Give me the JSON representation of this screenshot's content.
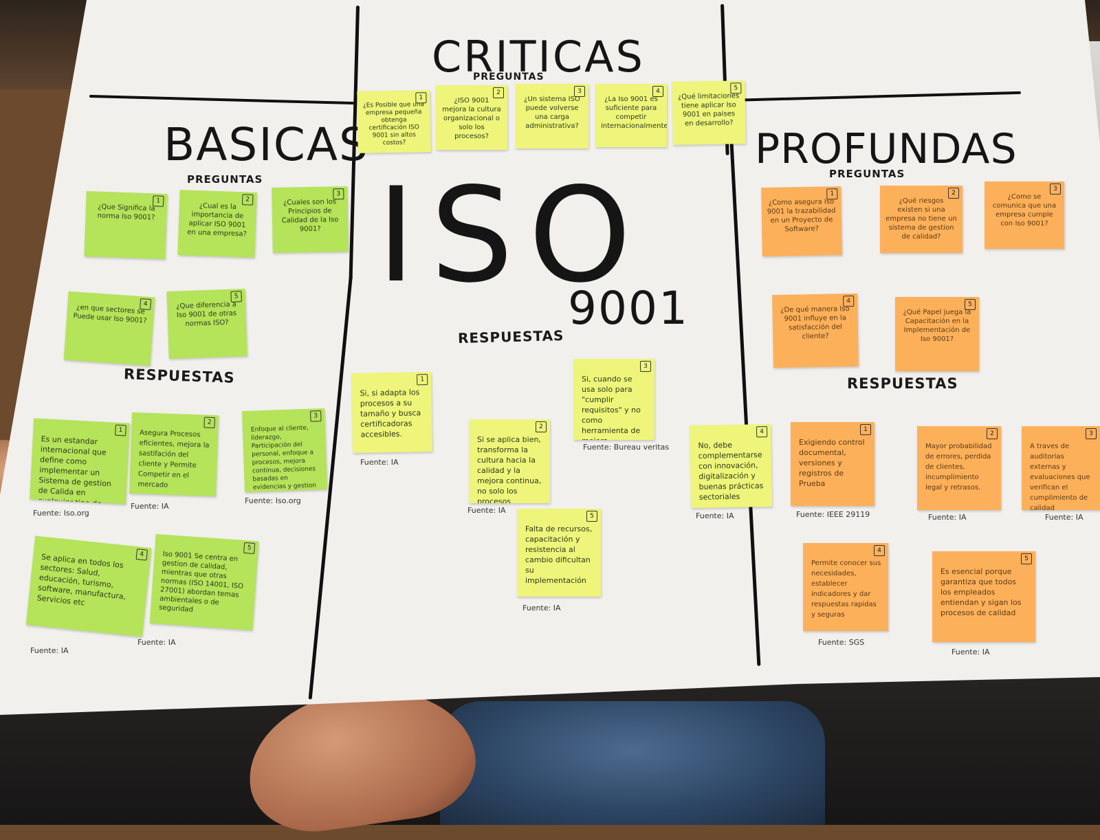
{
  "center": {
    "title": "CRITICAS",
    "subtitle": "PREGUNTAS",
    "big_iso": "ISO",
    "big_num": "9001",
    "answers_label": "RESPUESTAS"
  },
  "left": {
    "title": "BASICAS",
    "subtitle": "PREGUNTAS",
    "answers_label": "RESPUESTAS"
  },
  "right": {
    "title": "PROFUNDAS",
    "subtitle": "PREGUNTAS",
    "answers_label": "RESPUESTAS"
  },
  "notes": [
    {
      "id": "b-q1",
      "num": "1",
      "text": "¿Que Significa la norma Iso 9001?"
    },
    {
      "id": "b-q2",
      "num": "2",
      "text": "¿Cual es la importancia de aplicar ISO 9001 en una empresa?"
    },
    {
      "id": "b-q3",
      "num": "3",
      "text": "¿Cuales son los Principios de Calidad de la Iso 9001?"
    },
    {
      "id": "b-q4",
      "num": "4",
      "text": "¿en que sectores se Puede usar Iso 9001?"
    },
    {
      "id": "b-q5",
      "num": "5",
      "text": "¿Que diferencia a Iso 9001 de otras normas ISO?"
    },
    {
      "id": "b-a1",
      "num": "1",
      "text": "Es un estandar internacional que define como implementar un Sistema de gestion de Calida en cualquier tipo de organización",
      "source": "Fuente: Iso.org"
    },
    {
      "id": "b-a2",
      "num": "2",
      "text": "Asegura Procesos eficientes, mejora la sastifación del cliente y Permite Competir en el mercado",
      "source": "Fuente: IA"
    },
    {
      "id": "b-a3",
      "num": "3",
      "text": "Enfoque al cliente, liderazgo, Participación del personal, enfoque a procesos, mejora continua, decisiones basadas en evidencias y gestion de relaciones",
      "source": "Fuente: Iso.org"
    },
    {
      "id": "b-a4",
      "num": "4",
      "text": "Se aplica en todos los sectores: Salud, educación, turismo, software, manufactura, Servicios etc",
      "source": "Fuente: IA"
    },
    {
      "id": "b-a5",
      "num": "5",
      "text": "Iso 9001 Se centra en gestion de calidad, mientras que otras normas (ISO 14001, ISO 27001) abordan temas ambientales o de seguridad",
      "source": "Fuente: IA"
    },
    {
      "id": "c-q1",
      "num": "1",
      "text": "¿Es Posible que una empresa pequeña obtenga certificación ISO 9001 sin altos costos?"
    },
    {
      "id": "c-q2",
      "num": "2",
      "text": "¿ISO 9001 mejora la cultura organizacional o solo los procesos?"
    },
    {
      "id": "c-q3",
      "num": "3",
      "text": "¿Un sistema ISO puede volverse una carga administrativa?"
    },
    {
      "id": "c-q4",
      "num": "4",
      "text": "¿La Iso 9001 es suficiente para competir internacionalmente?"
    },
    {
      "id": "c-q5",
      "num": "5",
      "text": "¿Qué limitaciones tiene aplicar Iso 9001 en paises en desarrollo?"
    },
    {
      "id": "c-a1",
      "num": "1",
      "text": "Si, si adapta los procesos a su tamaño y busca certificadoras accesibles.",
      "source": "Fuente: IA"
    },
    {
      "id": "c-a2",
      "num": "2",
      "text": "Si se aplica bien, transforma la cultura hacia la calidad y la mejora continua, no solo los procesos",
      "source": "Fuente: IA"
    },
    {
      "id": "c-a3",
      "num": "3",
      "text": "Si, cuando se usa solo para \"cumplir requisitos\" y no como herramienta de mejora",
      "source": "Fuente: Bureau veritas"
    },
    {
      "id": "c-a4",
      "num": "4",
      "text": "No, debe complementarse con innovación, digitalización y buenas prácticas sectoriales",
      "source": "Fuente: IA"
    },
    {
      "id": "c-a5",
      "num": "5",
      "text": "Falta de recursos, capacitación y resistencia al cambio dificultan su implementación",
      "source": "Fuente: IA"
    },
    {
      "id": "p-q1",
      "num": "1",
      "text": "¿Como asegura Iso 9001 la trazabilidad en un Proyecto de Software?"
    },
    {
      "id": "p-q2",
      "num": "2",
      "text": "¿Qué riesgos existen si una empresa no tiene un sistema de gestion de calidad?"
    },
    {
      "id": "p-q3",
      "num": "3",
      "text": "¿Como se comunica que una empresa cumple con Iso 9001?"
    },
    {
      "id": "p-q4",
      "num": "4",
      "text": "¿De qué manera Iso 9001 influye en la satisfacción del cliente?"
    },
    {
      "id": "p-q5",
      "num": "5",
      "text": "¿Qué Papel juega la Capacitación en la Implementación de Iso 9001?"
    },
    {
      "id": "p-a1",
      "num": "1",
      "text": "Exigiendo control documental, versiones y registros de Prueba",
      "source": "Fuente: IEEE 29119"
    },
    {
      "id": "p-a2",
      "num": "2",
      "text": "Mayor probabilidad de errores, perdida de clientes, incumplimiento legal y retrasos.",
      "source": "Fuente: IA"
    },
    {
      "id": "p-a3",
      "num": "3",
      "text": "A traves de auditorias externas y evaluaciones que verifican el cumplimiento de calidad",
      "source": "Fuente: IA"
    },
    {
      "id": "p-a4",
      "num": "4",
      "text": "Permite conocer sus necesidades, establecer indicadores y dar respuestas rapidas y seguras",
      "source": "Fuente: SGS"
    },
    {
      "id": "p-a5",
      "num": "5",
      "text": "Es esencial porque garantiza que todos los empleados entiendan y sigan los procesos de calidad",
      "source": "Fuente: IA"
    }
  ]
}
